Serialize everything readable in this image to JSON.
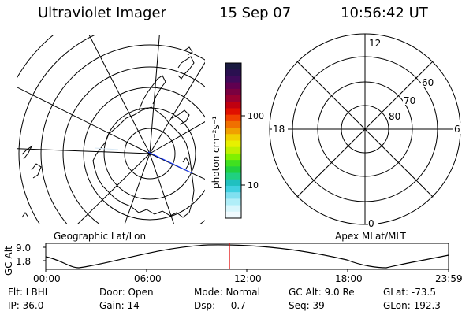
{
  "header": {
    "title": "Ultraviolet Imager",
    "date": "15 Sep 07",
    "time": "10:56:42 UT"
  },
  "colorbar": {
    "unit_label": "photon cm⁻²s⁻¹",
    "ticks": [
      "100",
      "10"
    ],
    "colors": [
      "#1a1a40",
      "#2a1050",
      "#400a5a",
      "#600050",
      "#7a0040",
      "#9a0030",
      "#c00010",
      "#e01000",
      "#f04000",
      "#f07000",
      "#f0a000",
      "#f0d000",
      "#e8f000",
      "#c0f000",
      "#80f000",
      "#40e020",
      "#20d040",
      "#20d080",
      "#20c0c0",
      "#40d0e0",
      "#80e0f0",
      "#b0eef8",
      "#d8f6fc",
      "#f0fafe"
    ]
  },
  "left_map": {
    "caption": "Geographic Lat/Lon"
  },
  "right_map": {
    "caption": "Apex MLat/MLT",
    "labels": {
      "top": "12",
      "left": "18",
      "right": "6",
      "bottom": "0",
      "lat60": "60",
      "lat70": "70",
      "lat80": "80"
    }
  },
  "timeline": {
    "y_axis_label": "GC Alt",
    "y_top": "9.0",
    "y_bottom": "1.8",
    "x_ticks": [
      "00:00",
      "06:00",
      "12:00",
      "18:00",
      "23:59"
    ],
    "current_time_fraction": 0.456
  },
  "info": {
    "flt": "Flt: LBHL",
    "ip": "IP: 36.0",
    "door": "Door: Open",
    "gain": "Gain: 14",
    "mode": "Mode: Normal",
    "dsp": "Dsp:    -0.7",
    "gcalt": "GC Alt: 9.0 Re",
    "seq": "Seq: 39",
    "glat": "GLat: -73.5",
    "glon": "GLon: 192.3"
  }
}
